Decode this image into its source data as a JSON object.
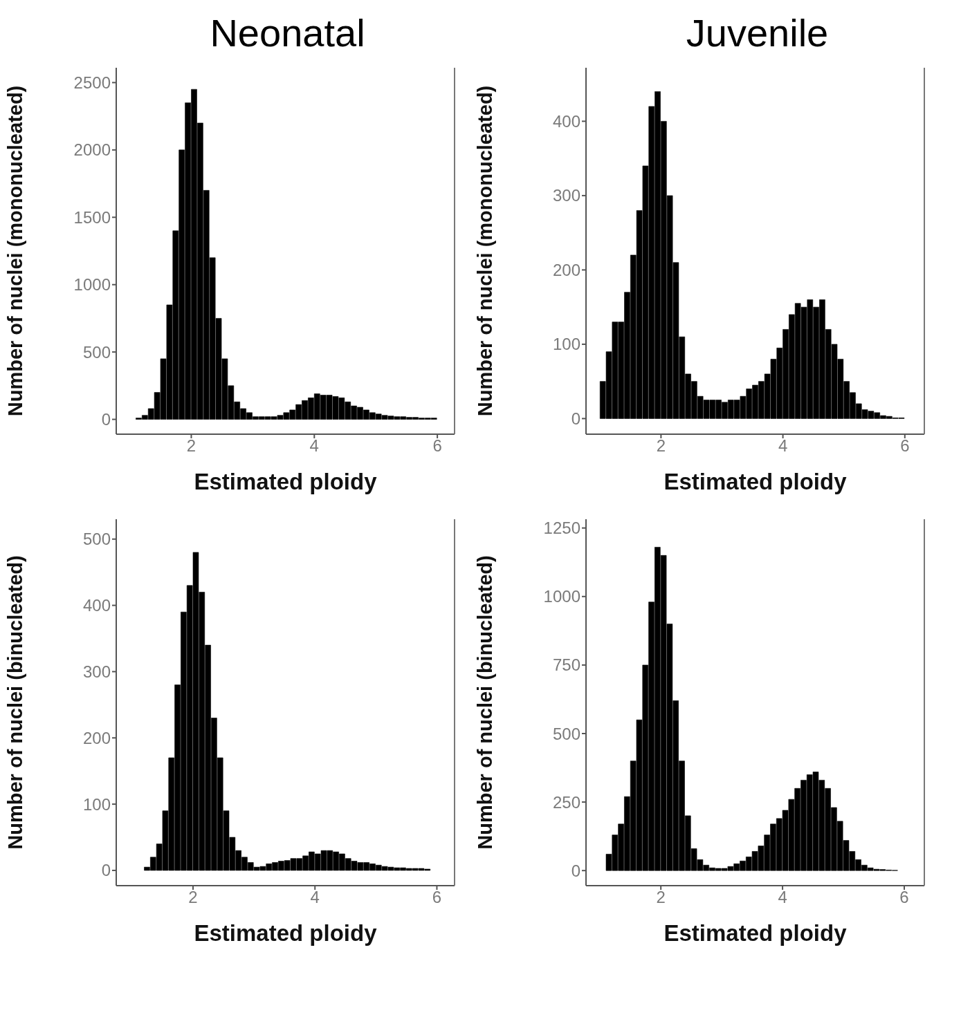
{
  "chart_data": [
    {
      "type": "histogram",
      "title": "Neonatal",
      "xlabel": "Estimated ploidy",
      "ylabel": "Number of nuclei (mononucleated)",
      "color": "#000000",
      "bins": [
        1,
        1.1,
        1.2,
        1.3,
        1.4,
        1.5,
        1.6,
        1.7,
        1.8,
        1.9,
        2,
        2.1,
        2.2,
        2.3,
        2.4,
        2.5,
        2.6,
        2.7,
        2.8,
        2.9,
        3,
        3.1,
        3.2,
        3.3,
        3.4,
        3.5,
        3.6,
        3.7,
        3.8,
        3.9,
        4,
        4.1,
        4.2,
        4.3,
        4.4,
        4.5,
        4.6,
        4.7,
        4.8,
        4.9,
        5,
        5.1,
        5.2,
        5.3,
        5.4,
        5.5,
        5.6,
        5.7,
        5.8,
        5.9,
        6
      ],
      "values": [
        0,
        10,
        30,
        80,
        200,
        450,
        850,
        1400,
        2000,
        2350,
        2450,
        2200,
        1700,
        1200,
        750,
        450,
        250,
        130,
        80,
        50,
        20,
        20,
        20,
        20,
        30,
        50,
        70,
        110,
        140,
        160,
        190,
        180,
        180,
        170,
        160,
        130,
        100,
        90,
        70,
        50,
        40,
        30,
        25,
        20,
        20,
        15,
        15,
        10,
        10,
        10
      ],
      "xlim": [
        0.78,
        6.28
      ],
      "xticks": [
        2,
        4,
        6
      ],
      "ylim": [
        -110,
        2610
      ],
      "yticks": [
        0,
        500,
        1000,
        1500,
        2000,
        2500
      ]
    },
    {
      "type": "histogram",
      "title": "Juvenile",
      "xlabel": "Estimated ploidy",
      "ylabel": "Number of nuclei (mononucleated)",
      "color": "#000000",
      "bins": [
        1,
        1.1,
        1.2,
        1.3,
        1.4,
        1.5,
        1.6,
        1.7,
        1.8,
        1.9,
        2,
        2.1,
        2.2,
        2.3,
        2.4,
        2.5,
        2.6,
        2.7,
        2.8,
        2.9,
        3,
        3.1,
        3.2,
        3.3,
        3.4,
        3.5,
        3.6,
        3.7,
        3.8,
        3.9,
        4,
        4.1,
        4.2,
        4.3,
        4.4,
        4.5,
        4.6,
        4.7,
        4.8,
        4.9,
        5,
        5.1,
        5.2,
        5.3,
        5.4,
        5.5,
        5.6,
        5.7,
        5.8,
        5.9,
        6
      ],
      "values": [
        50,
        90,
        130,
        130,
        170,
        220,
        280,
        340,
        420,
        440,
        400,
        300,
        210,
        110,
        60,
        50,
        30,
        25,
        25,
        25,
        22,
        25,
        25,
        30,
        40,
        45,
        50,
        60,
        80,
        95,
        120,
        140,
        155,
        150,
        160,
        150,
        160,
        120,
        100,
        80,
        50,
        35,
        20,
        12,
        10,
        8,
        4,
        3,
        1,
        1
      ],
      "xlim": [
        0.77,
        6.32
      ],
      "xticks": [
        2,
        4,
        6
      ],
      "ylim": [
        -21,
        472
      ],
      "yticks": [
        0,
        100,
        200,
        300,
        400
      ]
    },
    {
      "type": "histogram",
      "xlabel": "Estimated ploidy",
      "ylabel": "Number of nuclei (binucleated)",
      "color": "#000000",
      "bins": [
        1,
        1.1,
        1.2,
        1.3,
        1.4,
        1.5,
        1.6,
        1.7,
        1.8,
        1.9,
        2,
        2.1,
        2.2,
        2.3,
        2.4,
        2.5,
        2.6,
        2.7,
        2.8,
        2.9,
        3,
        3.1,
        3.2,
        3.3,
        3.4,
        3.5,
        3.6,
        3.7,
        3.8,
        3.9,
        4,
        4.1,
        4.2,
        4.3,
        4.4,
        4.5,
        4.6,
        4.7,
        4.8,
        4.9,
        5,
        5.1,
        5.2,
        5.3,
        5.4,
        5.5,
        5.6,
        5.7,
        5.8,
        5.9,
        6
      ],
      "values": [
        0,
        0,
        5,
        20,
        40,
        90,
        170,
        280,
        390,
        430,
        480,
        420,
        340,
        230,
        170,
        90,
        50,
        30,
        20,
        12,
        5,
        6,
        10,
        12,
        14,
        15,
        18,
        18,
        22,
        28,
        25,
        30,
        30,
        28,
        25,
        18,
        14,
        12,
        12,
        10,
        8,
        6,
        5,
        4,
        4,
        3,
        3,
        3,
        2,
        0
      ],
      "xlim": [
        0.74,
        6.29
      ],
      "xticks": [
        2,
        4,
        6
      ],
      "ylim": [
        -23,
        530
      ],
      "yticks": [
        0,
        100,
        200,
        300,
        400,
        500
      ]
    },
    {
      "type": "histogram",
      "xlabel": "Estimated ploidy",
      "ylabel": "Number of nuclei (binucleated)",
      "color": "#000000",
      "bins": [
        1,
        1.1,
        1.2,
        1.3,
        1.4,
        1.5,
        1.6,
        1.7,
        1.8,
        1.9,
        2,
        2.1,
        2.2,
        2.3,
        2.4,
        2.5,
        2.6,
        2.7,
        2.8,
        2.9,
        3,
        3.1,
        3.2,
        3.3,
        3.4,
        3.5,
        3.6,
        3.7,
        3.8,
        3.9,
        4,
        4.1,
        4.2,
        4.3,
        4.4,
        4.5,
        4.6,
        4.7,
        4.8,
        4.9,
        5,
        5.1,
        5.2,
        5.3,
        5.4,
        5.5,
        5.6,
        5.7,
        5.8,
        5.9,
        6
      ],
      "values": [
        0,
        60,
        130,
        170,
        270,
        400,
        550,
        750,
        980,
        1180,
        1150,
        900,
        620,
        400,
        200,
        80,
        40,
        20,
        10,
        8,
        8,
        15,
        25,
        35,
        50,
        70,
        90,
        130,
        170,
        190,
        220,
        260,
        300,
        330,
        350,
        360,
        330,
        300,
        230,
        180,
        110,
        70,
        40,
        20,
        10,
        5,
        4,
        2,
        1,
        0
      ],
      "xlim": [
        0.77,
        6.33
      ],
      "xticks": [
        2,
        4,
        6
      ],
      "ylim": [
        -55,
        1282
      ],
      "yticks": [
        0,
        250,
        500,
        750,
        1000,
        1250
      ]
    }
  ]
}
